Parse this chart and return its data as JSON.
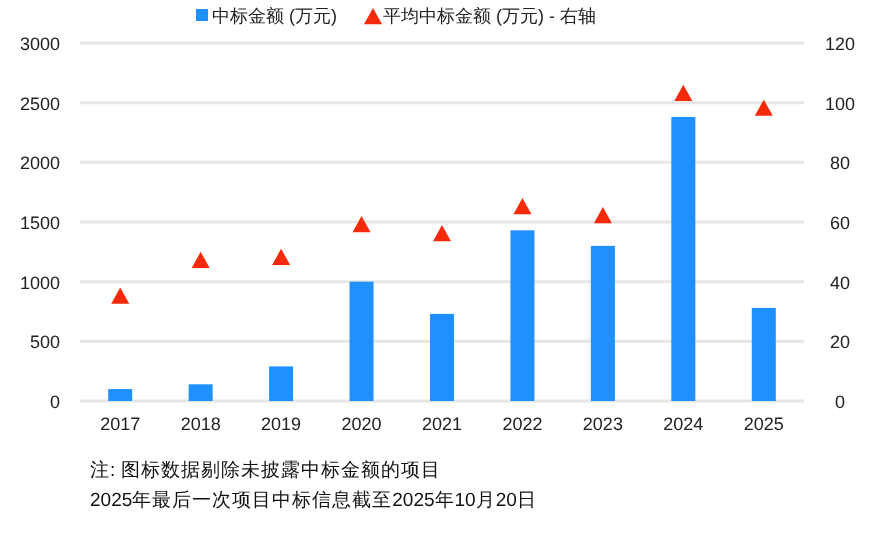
{
  "chart_data": {
    "type": "bar",
    "categories": [
      "2017",
      "2018",
      "2019",
      "2020",
      "2021",
      "2022",
      "2023",
      "2024",
      "2025"
    ],
    "series": [
      {
        "name": "中标金额 (万元)",
        "color": "#1e90ff",
        "values": [
          100,
          140,
          290,
          1000,
          730,
          1430,
          1300,
          2380,
          780
        ]
      },
      {
        "name": "平均中标金额 (万元) - 右轴",
        "type": "scatter",
        "axis": "y2",
        "marker": "triangle",
        "color": "#f52a0a",
        "values": [
          35,
          47,
          48,
          59,
          56,
          65,
          62,
          103,
          98
        ]
      }
    ],
    "ylim": [
      0,
      3000
    ],
    "yticks": [
      0,
      500,
      1000,
      1500,
      2000,
      2500,
      3000
    ],
    "y2lim": [
      0,
      120
    ],
    "y2ticks": [
      0,
      20,
      40,
      60,
      80,
      100,
      120
    ],
    "grid": "y",
    "legend": "top",
    "annotations": [
      "注:  图标数据剔除未披露中标金额的项目",
      "2025年最后一次项目中标信息截至2025年10月20日"
    ]
  }
}
